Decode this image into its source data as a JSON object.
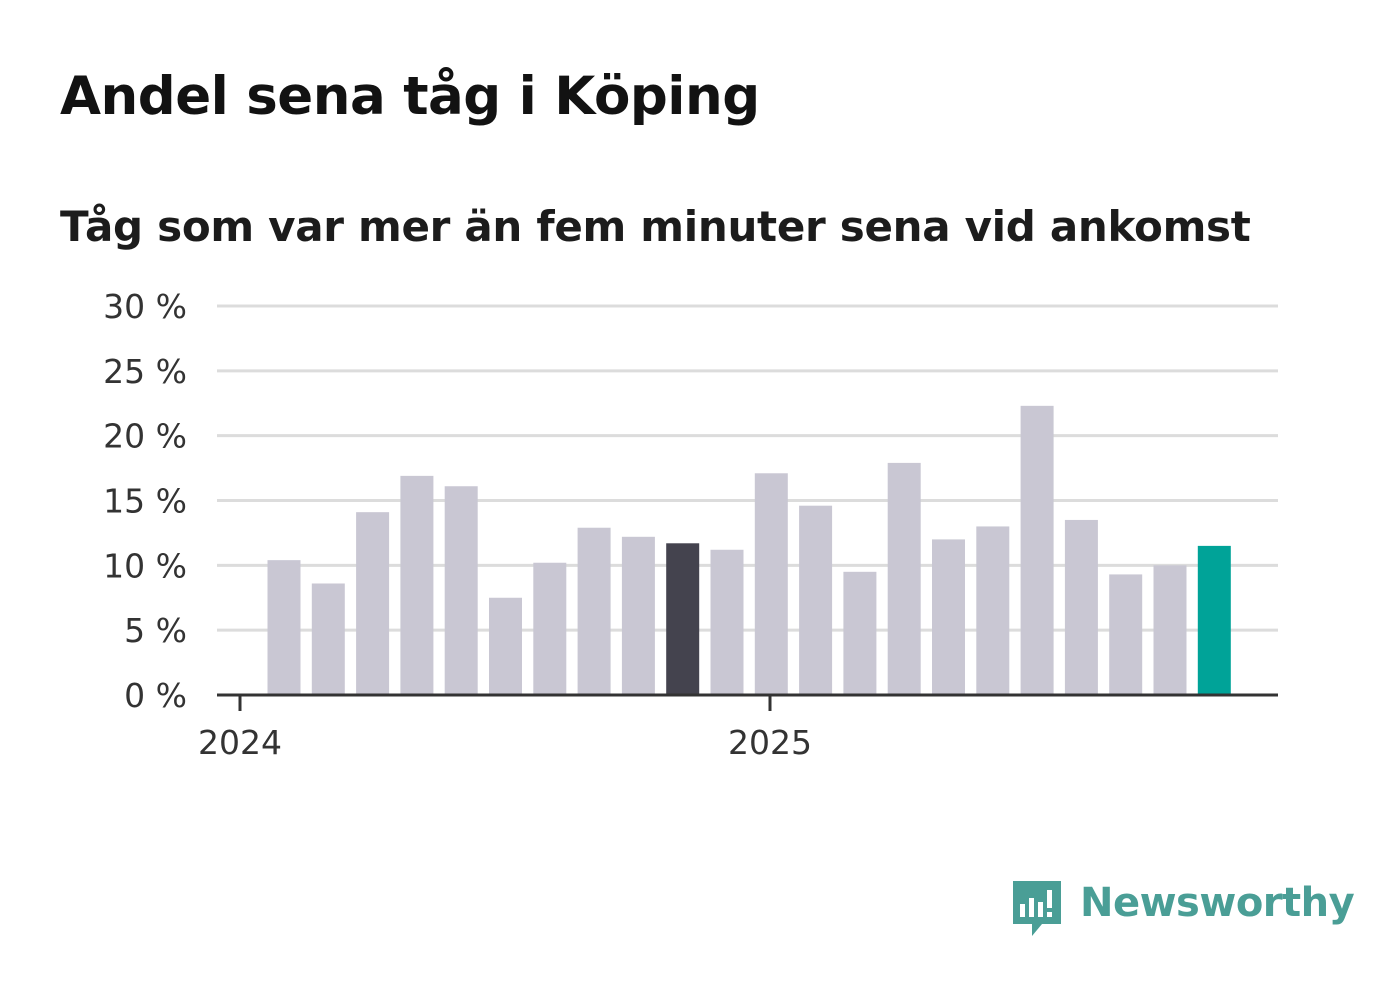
{
  "chart_data": {
    "type": "bar",
    "title": "Andel sena tåg i Köping",
    "subtitle": "Tåg som var mer än fem minuter sena vid ankomst",
    "xlabel": "",
    "ylabel": "",
    "x_tick_labels": [
      {
        "label": "2024",
        "month_index": 0
      },
      {
        "label": "2025",
        "month_index": 12
      }
    ],
    "y_ticks": [
      {
        "value": 0,
        "label": "0 %"
      },
      {
        "value": 5,
        "label": "5 %"
      },
      {
        "value": 10,
        "label": "10 %"
      },
      {
        "value": 15,
        "label": "15 %"
      },
      {
        "value": 20,
        "label": "20 %"
      },
      {
        "value": 25,
        "label": "25 %"
      },
      {
        "value": 30,
        "label": "30 %"
      }
    ],
    "ylim": [
      0,
      30
    ],
    "grid": true,
    "values": [
      10.4,
      8.6,
      14.1,
      16.9,
      16.1,
      7.5,
      10.2,
      12.9,
      12.2,
      11.7,
      11.2,
      17.1,
      14.6,
      9.5,
      17.9,
      12.0,
      13.0,
      22.3,
      13.5,
      9.3,
      10.0,
      11.5
    ],
    "highlight": [
      {
        "index": 9,
        "color": "#44434e"
      },
      {
        "index": 21,
        "color": "#00a398"
      }
    ],
    "bar_color": "#c9c7d3",
    "grid_color": "#dcdcdc",
    "axis_color": "#333333"
  },
  "brand": {
    "name": "Newsworthy",
    "color": "#4a9e96"
  }
}
